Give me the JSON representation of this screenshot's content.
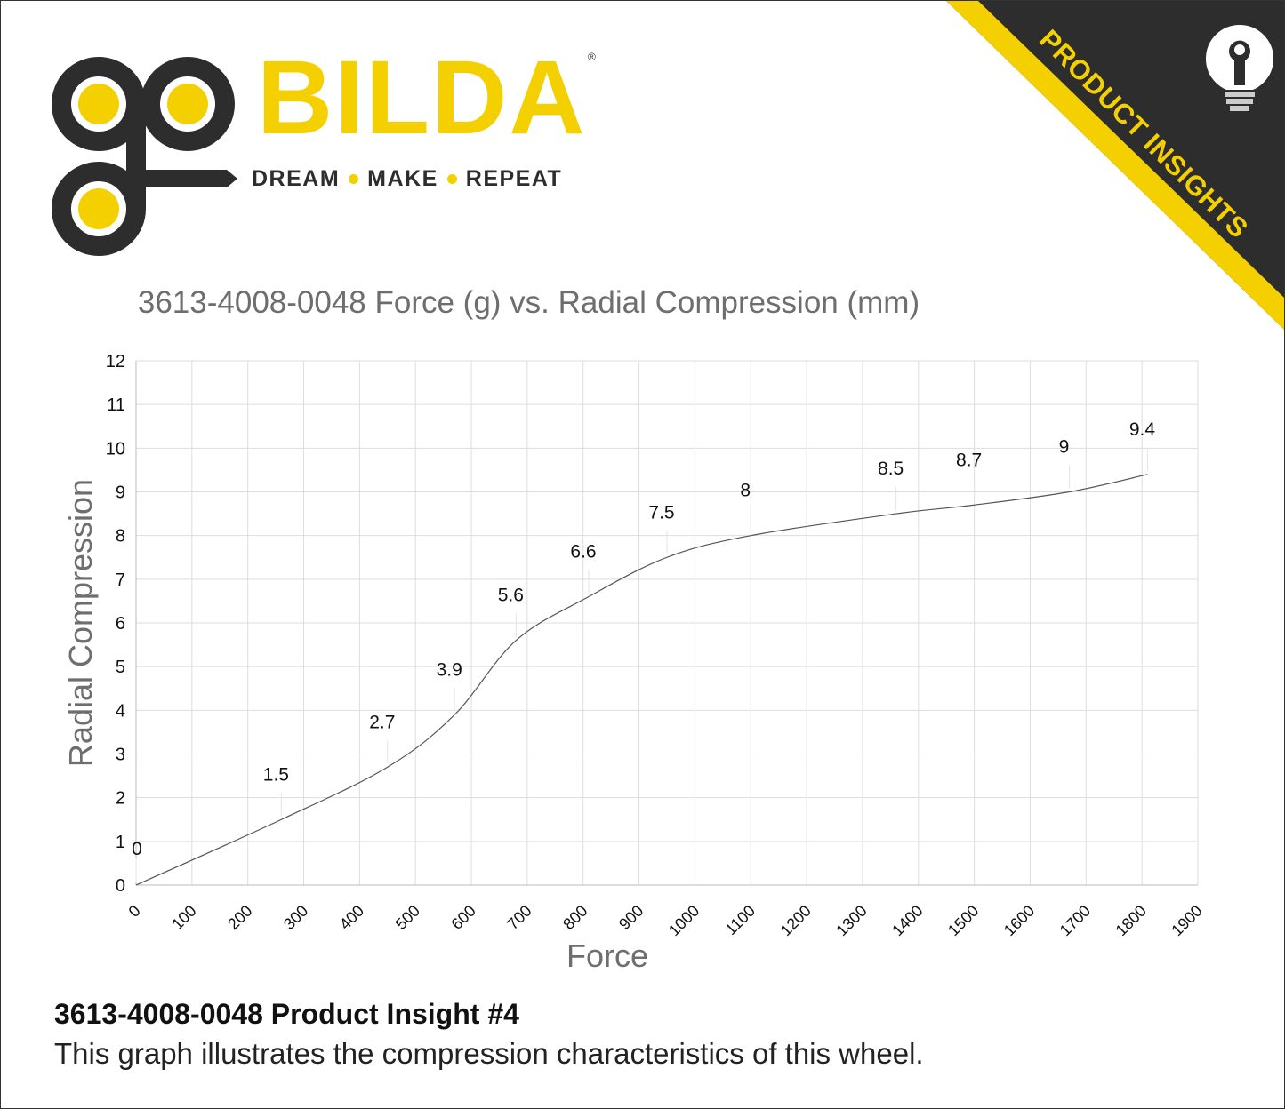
{
  "brand": {
    "name": "BILDA",
    "registered": "®",
    "tagline": [
      "DREAM",
      "MAKE",
      "REPEAT"
    ],
    "colors": {
      "yellow": "#f5d000",
      "dark": "#2d2d2d"
    }
  },
  "banner": {
    "text": "PRODUCT INSIGHTS",
    "icon": "lightbulb-wrench-icon",
    "colors": {
      "background": "#2d2d2d",
      "stripe": "#f5d000"
    }
  },
  "chart_data": {
    "type": "line",
    "title": "3613-4008-0048 Force (g) vs. Radial Compression (mm)",
    "xlabel": "Force",
    "ylabel": "Radial Compression",
    "xlim": [
      0,
      1900
    ],
    "ylim": [
      0,
      12
    ],
    "xticks": [
      "0",
      "100",
      "200",
      "300",
      "400",
      "500",
      "600",
      "700",
      "800",
      "900",
      "1000",
      "1100",
      "1200",
      "1300",
      "1400",
      "1500",
      "1600",
      "1700",
      "1800",
      "1900"
    ],
    "yticks": [
      "0",
      "1",
      "2",
      "3",
      "4",
      "5",
      "6",
      "7",
      "8",
      "9",
      "10",
      "11",
      "12"
    ],
    "grid": true,
    "series": [
      {
        "x": [
          0,
          260,
          450,
          570,
          680,
          810,
          950,
          1100,
          1360,
          1500,
          1670,
          1810
        ],
        "y": [
          0,
          1.5,
          2.7,
          3.9,
          5.6,
          6.6,
          7.5,
          8,
          8.5,
          8.7,
          9,
          9.4
        ],
        "labels": [
          "0",
          "1.5",
          "2.7",
          "3.9",
          "5.6",
          "6.6",
          "7.5",
          "8",
          "8.5",
          "8.7",
          "9",
          "9.4"
        ]
      }
    ],
    "colors": {
      "line": "#555555",
      "grid": "#dddddd",
      "axis_text": "#111111"
    }
  },
  "footer": {
    "heading": "3613-4008-0048 Product Insight #4",
    "description": "This graph illustrates the compression characteristics of this wheel."
  }
}
